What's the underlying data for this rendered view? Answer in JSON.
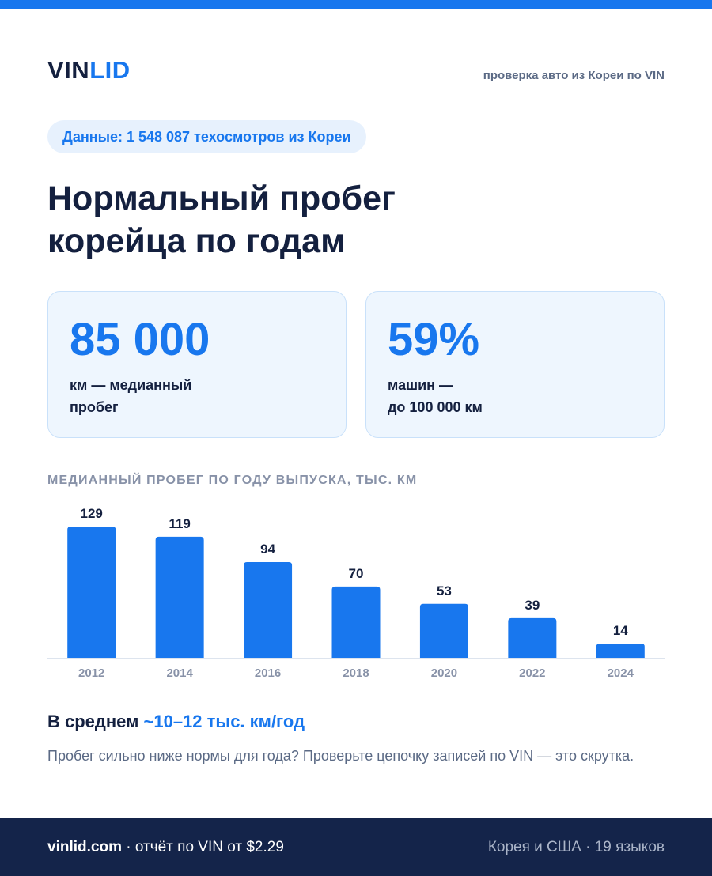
{
  "header": {
    "logo_part1": "VIN",
    "logo_part2": "LID",
    "tagline": "проверка авто из Кореи по VIN"
  },
  "badge": {
    "label": "Данные: 1 548 087 техосмотров из Кореи"
  },
  "headline": {
    "line1": "Нормальный пробег",
    "line2": "корейца по годам"
  },
  "stats": [
    {
      "value": "85 000",
      "caption_line1": "км — медианный",
      "caption_line2": "пробег"
    },
    {
      "value": "59%",
      "caption_line1": "машин —",
      "caption_line2": "до 100 000 км"
    }
  ],
  "chart_data": {
    "type": "bar",
    "title": "МЕДИАННЫЙ ПРОБЕГ ПО ГОДУ ВЫПУСКА, ТЫС. КМ",
    "categories": [
      "2012",
      "2014",
      "2016",
      "2018",
      "2020",
      "2022",
      "2024"
    ],
    "values": [
      129,
      119,
      94,
      70,
      53,
      39,
      14
    ],
    "xlabel": "",
    "ylabel": "",
    "ylim": [
      0,
      129
    ],
    "grid": false,
    "legend": "none",
    "bar_color": "#1877ee"
  },
  "summary": {
    "prefix": "В среднем ",
    "highlight": "~10–12 тыс. км/год",
    "note": "Пробег сильно ниже нормы для года? Проверьте цепочку записей по VIN — это скрутка."
  },
  "footer": {
    "site": "vinlid.com",
    "offer": " · отчёт по VIN от $2.29",
    "right": "Корея и США · 19 языков"
  },
  "colors": {
    "accent": "#1877ee",
    "navy": "#14203f",
    "footer_bg": "#14244a"
  }
}
